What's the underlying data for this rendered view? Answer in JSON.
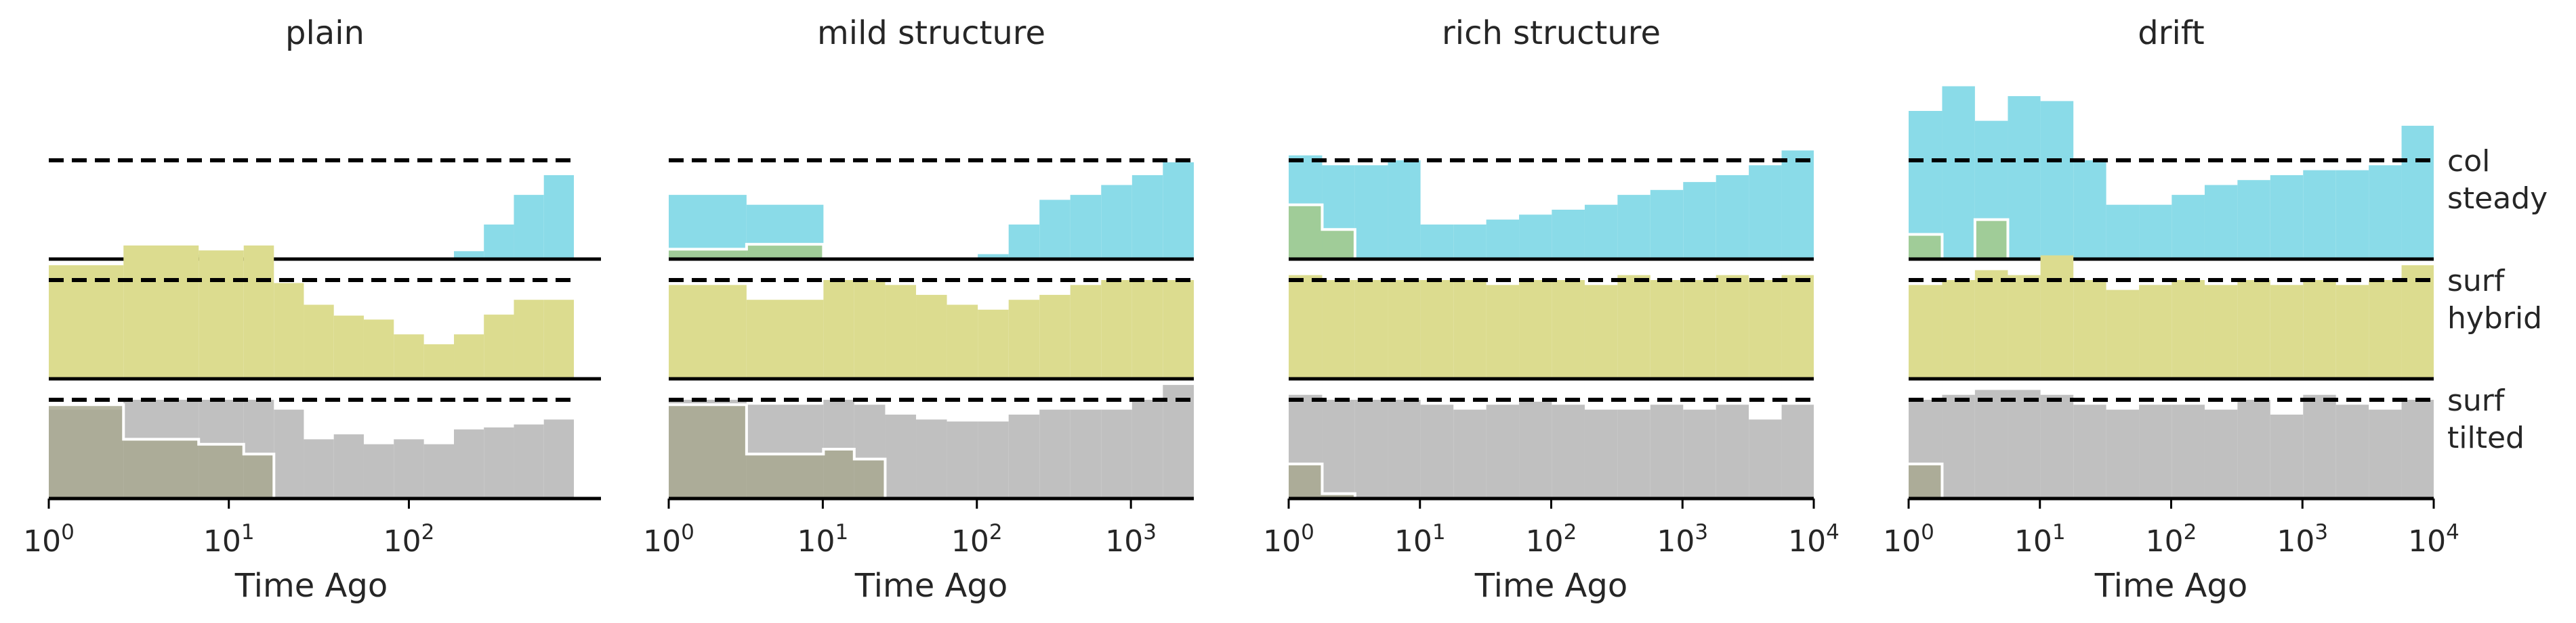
{
  "colors": {
    "col": "#8adbe8",
    "surf": "#dcdc8f",
    "tilted": "#c0c0c0",
    "overlap": "#a3c98a",
    "overlap_gray": "#a8a890"
  },
  "row_labels": [
    "col",
    "steady",
    "surf",
    "hybrid",
    "surf",
    "tilted"
  ],
  "chart_data": [
    {
      "type": "area",
      "title": "plain",
      "xlabel": "Time Ago",
      "x_scale": "log",
      "x_ticks": [
        "10^0",
        "10^1",
        "10^2"
      ],
      "bin_edges": [
        1,
        2.6,
        6.8,
        12.1,
        17.8,
        26.1,
        38.3,
        56.2,
        82.5,
        121.2,
        178,
        261,
        383,
        562,
        825
      ],
      "series": [
        {
          "row": "col/steady",
          "values": [
            0,
            0.05,
            0.05,
            0,
            0,
            0,
            0,
            0,
            0,
            0,
            0.08,
            0.35,
            0.65,
            0.85,
            0.98
          ],
          "overlap_values": [
            0,
            0.06,
            0.06
          ]
        },
        {
          "row": "surf/hybrid",
          "values": [
            1.15,
            1.35,
            1.3,
            1.35,
            0.97,
            0.75,
            0.64,
            0.6,
            0.45,
            0.35,
            0.45,
            0.65,
            0.8,
            0.8,
            1.0
          ]
        },
        {
          "row": "surf/tilted",
          "values": [
            0.9,
            1.0,
            1.0,
            1.0,
            0.9,
            0.6,
            0.65,
            0.55,
            0.6,
            0.55,
            0.7,
            0.72,
            0.75,
            0.8,
            1.1
          ],
          "overlap_values": [
            0.95,
            0.6,
            0.55,
            0.45
          ]
        }
      ]
    },
    {
      "type": "area",
      "title": "mild structure",
      "xlabel": "Time Ago",
      "x_scale": "log",
      "x_ticks": [
        "10^0",
        "10^1",
        "10^2",
        "10^3"
      ],
      "bin_edges": [
        1,
        3.2,
        10.1,
        16.0,
        25.4,
        40.3,
        63.9,
        101.4,
        160.8,
        255,
        404,
        641,
        1017,
        1612,
        2560
      ],
      "series": [
        {
          "row": "col/steady",
          "values": [
            0.65,
            0.55,
            0,
            0,
            0,
            0,
            0,
            0.05,
            0.35,
            0.6,
            0.65,
            0.75,
            0.85,
            0.98,
            0.65
          ],
          "overlap_values": [
            0.1,
            0.15
          ]
        },
        {
          "row": "surf/hybrid",
          "values": [
            0.95,
            0.8,
            1.0,
            1.0,
            0.95,
            0.85,
            0.75,
            0.7,
            0.8,
            0.85,
            0.95,
            1.0,
            1.0,
            1.0,
            0.7
          ]
        },
        {
          "row": "surf/tilted",
          "values": [
            1.0,
            0.95,
            1.0,
            0.95,
            0.85,
            0.8,
            0.78,
            0.78,
            0.85,
            0.9,
            0.9,
            0.9,
            1.0,
            1.15,
            1.0
          ],
          "overlap_values": [
            0.95,
            0.45,
            0.5,
            0.4
          ]
        }
      ]
    },
    {
      "type": "area",
      "title": "rich structure",
      "xlabel": "Time Ago",
      "x_scale": "log",
      "x_ticks": [
        "10^0",
        "10^1",
        "10^2",
        "10^3",
        "10^4"
      ],
      "bin_edges": [
        1,
        1.8,
        3.2,
        5.7,
        10.1,
        18.0,
        32.0,
        56.9,
        101,
        180,
        320,
        569,
        1012,
        1800,
        3200,
        5690,
        10000
      ],
      "series": [
        {
          "row": "col/steady",
          "values": [
            1.05,
            0.95,
            0.95,
            1.0,
            0.35,
            0.35,
            0.4,
            0.45,
            0.5,
            0.55,
            0.65,
            0.7,
            0.78,
            0.85,
            0.95,
            1.1
          ],
          "overlap_values": [
            0.55,
            0.3
          ]
        },
        {
          "row": "surf/hybrid",
          "values": [
            1.05,
            1.0,
            1.0,
            1.0,
            1.0,
            1.0,
            0.95,
            1.0,
            1.0,
            0.95,
            1.05,
            1.0,
            1.0,
            1.05,
            1.0,
            1.05
          ]
        },
        {
          "row": "surf/tilted",
          "values": [
            1.05,
            1.0,
            1.0,
            1.0,
            0.95,
            0.9,
            0.95,
            0.98,
            0.95,
            0.9,
            0.9,
            0.95,
            0.9,
            0.95,
            0.8,
            0.95
          ],
          "overlap_values": [
            0.35,
            0.05
          ]
        }
      ]
    },
    {
      "type": "area",
      "title": "drift",
      "xlabel": "Time Ago",
      "x_scale": "log",
      "x_ticks": [
        "10^0",
        "10^1",
        "10^2",
        "10^3",
        "10^4"
      ],
      "bin_edges": [
        1,
        1.8,
        3.2,
        5.7,
        10.1,
        18.0,
        32.0,
        56.9,
        101,
        180,
        320,
        569,
        1012,
        1800,
        3200,
        5690,
        10000
      ],
      "series": [
        {
          "row": "col/steady",
          "values": [
            1.5,
            1.75,
            1.4,
            1.65,
            1.6,
            1.0,
            0.55,
            0.55,
            0.65,
            0.75,
            0.8,
            0.85,
            0.9,
            0.9,
            0.95,
            1.35
          ],
          "overlap_values": [
            0.25,
            0.0,
            0.4
          ]
        },
        {
          "row": "surf/hybrid",
          "values": [
            0.95,
            1.0,
            1.1,
            1.05,
            1.25,
            1.0,
            0.9,
            0.95,
            1.0,
            0.95,
            1.0,
            0.95,
            1.0,
            0.95,
            1.0,
            1.15
          ]
        },
        {
          "row": "surf/tilted",
          "values": [
            1.0,
            1.05,
            1.1,
            1.1,
            1.05,
            0.95,
            0.9,
            0.95,
            0.95,
            0.9,
            1.0,
            0.85,
            1.05,
            0.95,
            0.9,
            1.0
          ],
          "overlap_values": [
            0.35
          ]
        }
      ]
    }
  ]
}
